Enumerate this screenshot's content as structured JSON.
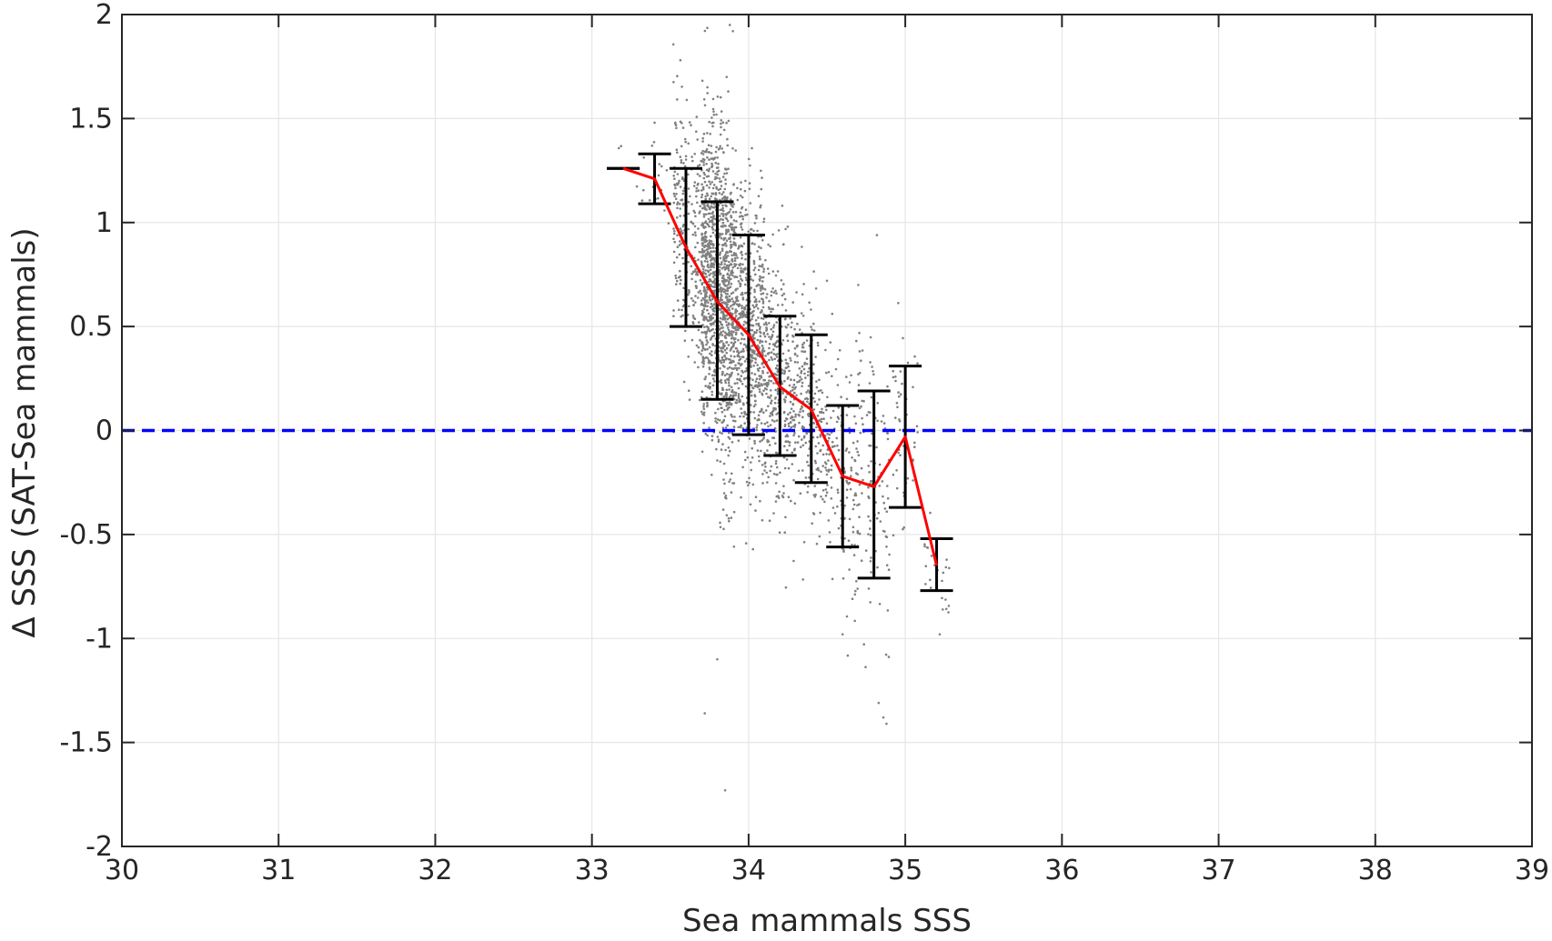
{
  "chart_data": {
    "type": "scatter",
    "title": "",
    "xlabel": "Sea mammals SSS",
    "ylabel": "Δ SSS (SAT-Sea mammals)",
    "xlim": [
      30,
      39
    ],
    "ylim": [
      -2,
      2
    ],
    "xticks": [
      "30",
      "31",
      "32",
      "33",
      "34",
      "35",
      "36",
      "37",
      "38",
      "39"
    ],
    "yticks": [
      "-2",
      "-1.5",
      "-1",
      "-0.5",
      "0",
      "0.5",
      "1",
      "1.5",
      "2"
    ],
    "grid": true,
    "legend": "none",
    "colors": {
      "scatter": "#808080",
      "mean_line": "#ff0000",
      "error_bars": "#000000",
      "zero_line": "#0000ff",
      "grid": "#e6e6e6",
      "axes": "#262626"
    },
    "series": [
      {
        "type": "line",
        "x": [
          33.2,
          33.4,
          33.6,
          33.8,
          34.0,
          34.2,
          34.4,
          34.6,
          34.8,
          35.0,
          35.2
        ],
        "y": [
          1.26,
          1.21,
          0.88,
          0.62,
          0.46,
          0.21,
          0.1,
          -0.22,
          -0.27,
          -0.03,
          -0.65
        ]
      },
      {
        "type": "errorbar",
        "x": [
          33.2,
          33.4,
          33.6,
          33.8,
          34.0,
          34.2,
          34.4,
          34.6,
          34.8,
          35.0,
          35.2
        ],
        "lower": [
          1.26,
          1.09,
          0.5,
          0.15,
          -0.02,
          -0.12,
          -0.25,
          -0.56,
          -0.71,
          -0.37,
          -0.77
        ],
        "upper": [
          1.26,
          1.33,
          1.26,
          1.1,
          0.94,
          0.55,
          0.46,
          0.12,
          0.19,
          0.31,
          -0.52
        ]
      },
      {
        "type": "reference-line",
        "y": 0
      },
      {
        "type": "scatter-cloud",
        "bins": [
          {
            "x": 33.25,
            "mean": 1.27,
            "sd": 0.05,
            "n": 6,
            "xw": 0.12
          },
          {
            "x": 33.45,
            "mean": 1.2,
            "sd": 0.1,
            "n": 25,
            "xw": 0.12
          },
          {
            "x": 33.62,
            "mean": 0.92,
            "sd": 0.3,
            "n": 260,
            "xw": 0.1
          },
          {
            "x": 33.8,
            "mean": 0.66,
            "sd": 0.38,
            "n": 1100,
            "xw": 0.1
          },
          {
            "x": 34.0,
            "mean": 0.46,
            "sd": 0.34,
            "n": 650,
            "xw": 0.1
          },
          {
            "x": 34.2,
            "mean": 0.22,
            "sd": 0.28,
            "n": 360,
            "xw": 0.1
          },
          {
            "x": 34.4,
            "mean": 0.1,
            "sd": 0.26,
            "n": 220,
            "xw": 0.1
          },
          {
            "x": 34.6,
            "mean": -0.2,
            "sd": 0.28,
            "n": 150,
            "xw": 0.1
          },
          {
            "x": 34.8,
            "mean": -0.25,
            "sd": 0.34,
            "n": 110,
            "xw": 0.1
          },
          {
            "x": 35.0,
            "mean": -0.03,
            "sd": 0.26,
            "n": 45,
            "xw": 0.08
          },
          {
            "x": 35.2,
            "mean": -0.65,
            "sd": 0.1,
            "n": 25,
            "xw": 0.08
          }
        ],
        "outliers": [
          [
            33.88,
            1.95
          ],
          [
            33.9,
            1.92
          ],
          [
            33.86,
            1.7
          ],
          [
            33.4,
            1.48
          ],
          [
            33.72,
            -1.36
          ],
          [
            33.85,
            -1.73
          ],
          [
            34.83,
            -1.31
          ],
          [
            34.86,
            -1.38
          ],
          [
            34.88,
            -1.41
          ],
          [
            33.8,
            -1.1
          ],
          [
            34.6,
            -0.98
          ],
          [
            35.22,
            -0.98
          ],
          [
            34.25,
            0.98
          ],
          [
            34.05,
            1.02
          ],
          [
            34.5,
            0.72
          ],
          [
            34.7,
            0.7
          ]
        ]
      }
    ]
  }
}
